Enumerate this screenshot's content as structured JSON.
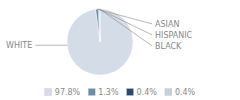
{
  "chart_data": {
    "type": "pie",
    "categories": [
      "WHITE",
      "ASIAN",
      "HISPANIC",
      "BLACK"
    ],
    "values": [
      97.8,
      1.3,
      0.4,
      0.4
    ],
    "value_labels": [
      "97.8%",
      "1.3%",
      "0.4%",
      "0.4%"
    ],
    "colors": [
      "#d4dce8",
      "#6b8fa8",
      "#2b4a6e",
      "#c5d0dc"
    ]
  }
}
